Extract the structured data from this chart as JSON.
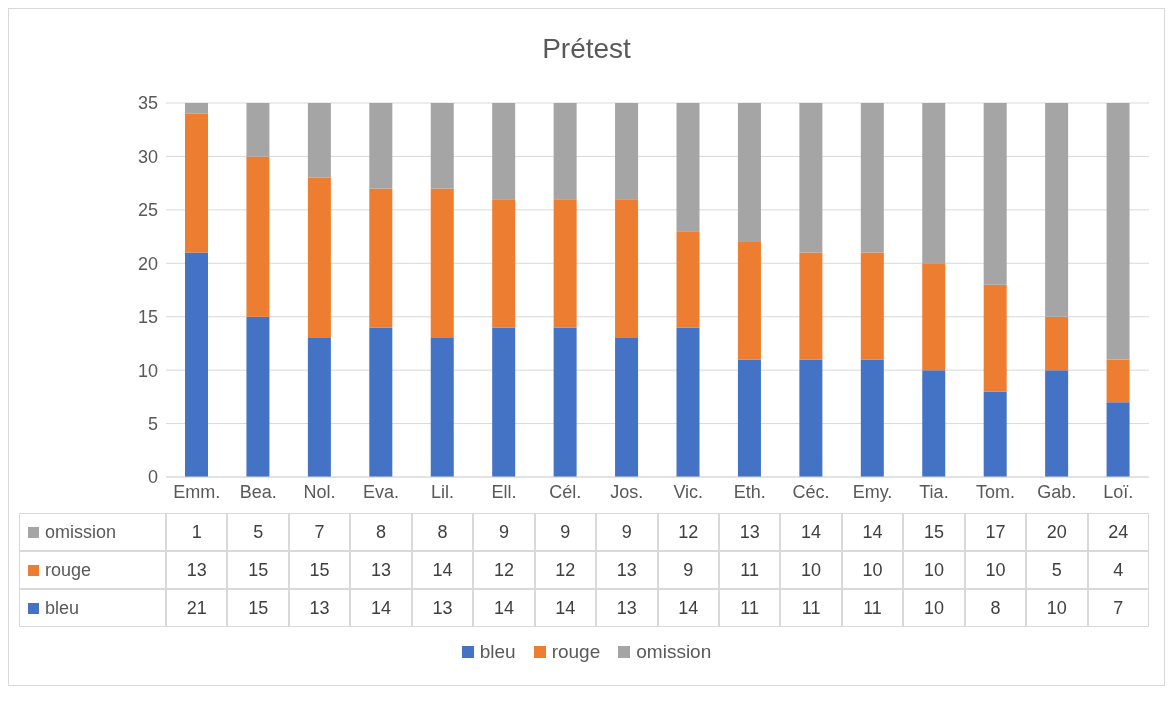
{
  "chart_data": {
    "type": "bar",
    "title": "Prétest",
    "stacked": true,
    "categories": [
      "Emm.",
      "Bea.",
      "Nol.",
      "Eva.",
      "Lil.",
      "Ell.",
      "Cél.",
      "Jos.",
      "Vic.",
      "Eth.",
      "Céc.",
      "Emy.",
      "Tia.",
      "Tom.",
      "Gab.",
      "Loï."
    ],
    "series": [
      {
        "name": "bleu",
        "color": "#4472c4",
        "values": [
          21,
          15,
          13,
          14,
          13,
          14,
          14,
          13,
          14,
          11,
          11,
          11,
          10,
          8,
          10,
          7
        ]
      },
      {
        "name": "rouge",
        "color": "#ed7d31",
        "values": [
          13,
          15,
          15,
          13,
          14,
          12,
          12,
          13,
          9,
          11,
          10,
          10,
          10,
          10,
          5,
          4
        ]
      },
      {
        "name": "omission",
        "color": "#a5a5a5",
        "values": [
          1,
          5,
          7,
          8,
          8,
          9,
          9,
          9,
          12,
          13,
          14,
          14,
          15,
          17,
          20,
          24
        ]
      }
    ],
    "ylim": [
      0,
      35
    ],
    "yticks": [
      0,
      5,
      10,
      15,
      20,
      25,
      30,
      35
    ],
    "grid": "y",
    "data_labels": true,
    "legend": "bottom"
  }
}
